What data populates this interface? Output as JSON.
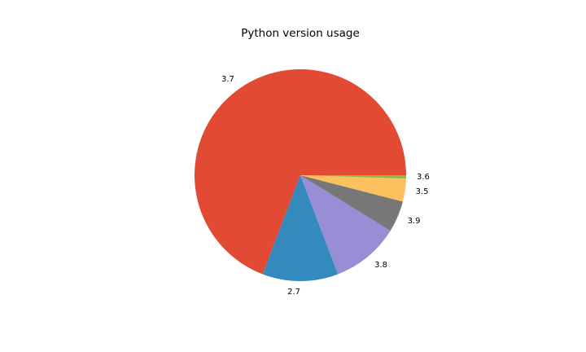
{
  "chart_data": {
    "type": "pie",
    "title": "Python version usage",
    "categories": [
      "3.7",
      "2.7",
      "3.8",
      "3.9",
      "3.5",
      "3.6"
    ],
    "values": [
      69.2,
      11.6,
      10.4,
      4.8,
      3.5,
      0.5
    ],
    "colors": [
      "#E24A33",
      "#348ABD",
      "#988ED5",
      "#777777",
      "#FBC15E",
      "#8EBA42"
    ],
    "start_angle": 0,
    "direction": "counterclockwise"
  }
}
